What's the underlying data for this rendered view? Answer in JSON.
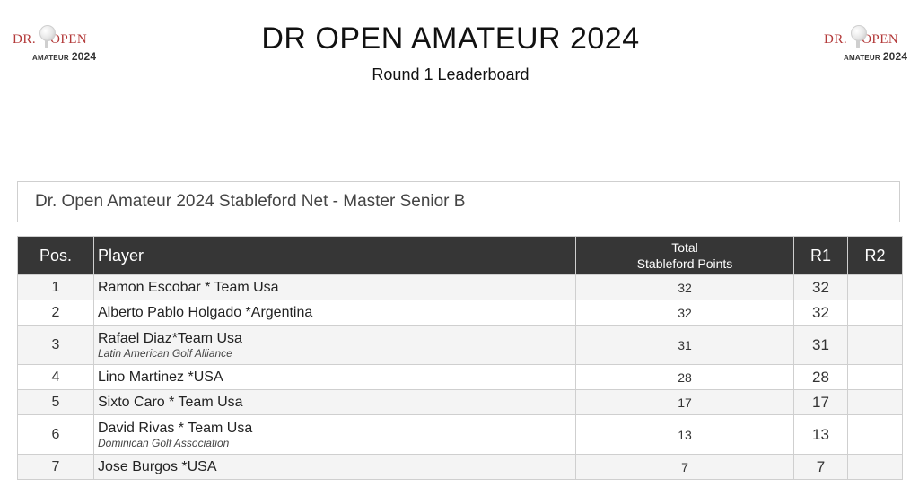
{
  "logo": {
    "brand_left": "DR.",
    "brand_right": "OPEN",
    "sub": "AMATEUR",
    "year": "2024"
  },
  "header": {
    "title": "DR OPEN AMATEUR 2024",
    "subtitle": "Round 1 Leaderboard"
  },
  "division": "Dr. Open Amateur 2024 Stableford Net - Master Senior B",
  "table": {
    "columns": {
      "pos": "Pos.",
      "player": "Player",
      "total_line1": "Total",
      "total_line2": "Stableford Points",
      "r1": "R1",
      "r2": "R2"
    },
    "rows": [
      {
        "pos": "1",
        "name": "Ramon Escobar * Team Usa",
        "club": "",
        "total": "32",
        "r1": "32",
        "r2": ""
      },
      {
        "pos": "2",
        "name": "Alberto Pablo Holgado *Argentina",
        "club": "",
        "total": "32",
        "r1": "32",
        "r2": ""
      },
      {
        "pos": "3",
        "name": "Rafael Diaz*Team Usa",
        "club": "Latin American Golf Alliance",
        "total": "31",
        "r1": "31",
        "r2": ""
      },
      {
        "pos": "4",
        "name": "Lino Martinez *USA",
        "club": "",
        "total": "28",
        "r1": "28",
        "r2": ""
      },
      {
        "pos": "5",
        "name": "Sixto Caro * Team Usa",
        "club": "",
        "total": "17",
        "r1": "17",
        "r2": ""
      },
      {
        "pos": "6",
        "name": "David Rivas * Team Usa",
        "club": "Dominican Golf Association",
        "total": "13",
        "r1": "13",
        "r2": ""
      },
      {
        "pos": "7",
        "name": "Jose Burgos *USA",
        "club": "",
        "total": "7",
        "r1": "7",
        "r2": ""
      }
    ]
  }
}
